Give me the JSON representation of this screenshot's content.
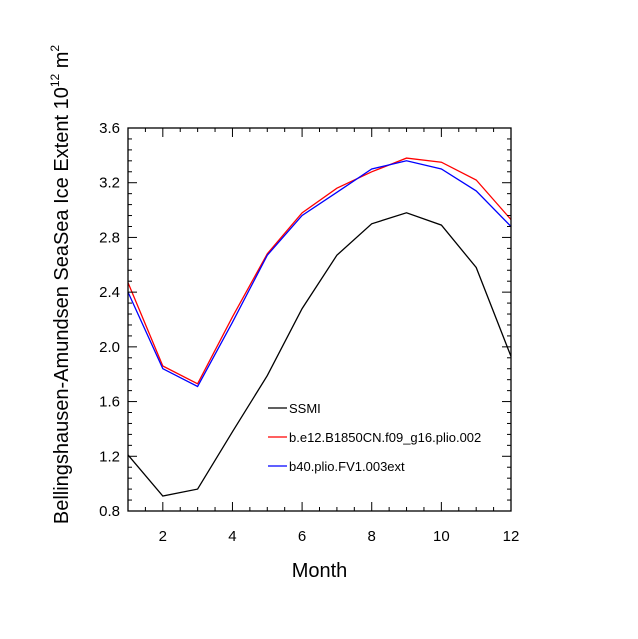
{
  "chart_data": {
    "type": "line",
    "title": "",
    "xlabel": "Month",
    "ylabel_main": "Bellingshausen-Amundsen SeaSea Ice Extent 10",
    "ylabel_exp1": "12",
    "ylabel_unit": " m",
    "ylabel_exp2": "2",
    "xlim": [
      1,
      12
    ],
    "ylim": [
      0.8,
      3.6
    ],
    "xticks": [
      2,
      4,
      6,
      8,
      10,
      12
    ],
    "xtick_labels": [
      "2",
      "4",
      "6",
      "8",
      "10",
      "12"
    ],
    "yticks": [
      0.8,
      1.2,
      1.6,
      2.0,
      2.4,
      2.8,
      3.2,
      3.6
    ],
    "ytick_labels": [
      "0.8",
      "1.2",
      "1.6",
      "2.0",
      "2.4",
      "2.8",
      "3.2",
      "3.6"
    ],
    "grid": false,
    "legend_position": "center-right",
    "x": [
      1,
      2,
      3,
      4,
      5,
      6,
      7,
      8,
      9,
      10,
      11,
      12
    ],
    "series": [
      {
        "name": "SSMI",
        "color": "#000000",
        "values": [
          1.21,
          0.91,
          0.96,
          1.38,
          1.79,
          2.28,
          2.67,
          2.9,
          2.98,
          2.89,
          2.58,
          1.93
        ]
      },
      {
        "name": "b.e12.B1850CN.f09_g16.plio.002",
        "color": "#ff0000",
        "values": [
          2.47,
          1.86,
          1.73,
          2.22,
          2.68,
          2.98,
          3.16,
          3.28,
          3.38,
          3.35,
          3.22,
          2.93
        ]
      },
      {
        "name": "b40.plio.FV1.003ext",
        "color": "#0000ff",
        "values": [
          2.4,
          1.84,
          1.71,
          2.18,
          2.67,
          2.96,
          3.13,
          3.3,
          3.36,
          3.3,
          3.14,
          2.88
        ]
      }
    ]
  }
}
